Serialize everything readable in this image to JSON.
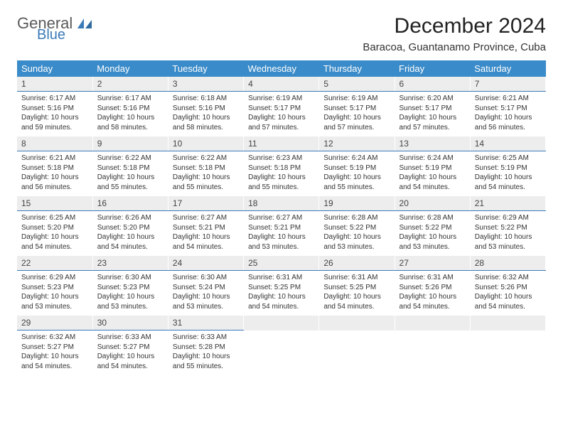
{
  "brand": {
    "word1": "General",
    "word2": "Blue",
    "logo_color": "#3a7ab8"
  },
  "title": "December 2024",
  "location": "Baracoa, Guantanamo Province, Cuba",
  "header_bg": "#3a8bc9",
  "header_fg": "#ffffff",
  "daynum_bg": "#ededed",
  "accent_line": "#3a7ab8",
  "weekdays": [
    "Sunday",
    "Monday",
    "Tuesday",
    "Wednesday",
    "Thursday",
    "Friday",
    "Saturday"
  ],
  "first_weekday_index": 0,
  "days": [
    {
      "n": 1,
      "sunrise": "6:17 AM",
      "sunset": "5:16 PM",
      "daylight": "10 hours and 59 minutes."
    },
    {
      "n": 2,
      "sunrise": "6:17 AM",
      "sunset": "5:16 PM",
      "daylight": "10 hours and 58 minutes."
    },
    {
      "n": 3,
      "sunrise": "6:18 AM",
      "sunset": "5:16 PM",
      "daylight": "10 hours and 58 minutes."
    },
    {
      "n": 4,
      "sunrise": "6:19 AM",
      "sunset": "5:17 PM",
      "daylight": "10 hours and 57 minutes."
    },
    {
      "n": 5,
      "sunrise": "6:19 AM",
      "sunset": "5:17 PM",
      "daylight": "10 hours and 57 minutes."
    },
    {
      "n": 6,
      "sunrise": "6:20 AM",
      "sunset": "5:17 PM",
      "daylight": "10 hours and 57 minutes."
    },
    {
      "n": 7,
      "sunrise": "6:21 AM",
      "sunset": "5:17 PM",
      "daylight": "10 hours and 56 minutes."
    },
    {
      "n": 8,
      "sunrise": "6:21 AM",
      "sunset": "5:18 PM",
      "daylight": "10 hours and 56 minutes."
    },
    {
      "n": 9,
      "sunrise": "6:22 AM",
      "sunset": "5:18 PM",
      "daylight": "10 hours and 55 minutes."
    },
    {
      "n": 10,
      "sunrise": "6:22 AM",
      "sunset": "5:18 PM",
      "daylight": "10 hours and 55 minutes."
    },
    {
      "n": 11,
      "sunrise": "6:23 AM",
      "sunset": "5:18 PM",
      "daylight": "10 hours and 55 minutes."
    },
    {
      "n": 12,
      "sunrise": "6:24 AM",
      "sunset": "5:19 PM",
      "daylight": "10 hours and 55 minutes."
    },
    {
      "n": 13,
      "sunrise": "6:24 AM",
      "sunset": "5:19 PM",
      "daylight": "10 hours and 54 minutes."
    },
    {
      "n": 14,
      "sunrise": "6:25 AM",
      "sunset": "5:19 PM",
      "daylight": "10 hours and 54 minutes."
    },
    {
      "n": 15,
      "sunrise": "6:25 AM",
      "sunset": "5:20 PM",
      "daylight": "10 hours and 54 minutes."
    },
    {
      "n": 16,
      "sunrise": "6:26 AM",
      "sunset": "5:20 PM",
      "daylight": "10 hours and 54 minutes."
    },
    {
      "n": 17,
      "sunrise": "6:27 AM",
      "sunset": "5:21 PM",
      "daylight": "10 hours and 54 minutes."
    },
    {
      "n": 18,
      "sunrise": "6:27 AM",
      "sunset": "5:21 PM",
      "daylight": "10 hours and 53 minutes."
    },
    {
      "n": 19,
      "sunrise": "6:28 AM",
      "sunset": "5:22 PM",
      "daylight": "10 hours and 53 minutes."
    },
    {
      "n": 20,
      "sunrise": "6:28 AM",
      "sunset": "5:22 PM",
      "daylight": "10 hours and 53 minutes."
    },
    {
      "n": 21,
      "sunrise": "6:29 AM",
      "sunset": "5:22 PM",
      "daylight": "10 hours and 53 minutes."
    },
    {
      "n": 22,
      "sunrise": "6:29 AM",
      "sunset": "5:23 PM",
      "daylight": "10 hours and 53 minutes."
    },
    {
      "n": 23,
      "sunrise": "6:30 AM",
      "sunset": "5:23 PM",
      "daylight": "10 hours and 53 minutes."
    },
    {
      "n": 24,
      "sunrise": "6:30 AM",
      "sunset": "5:24 PM",
      "daylight": "10 hours and 53 minutes."
    },
    {
      "n": 25,
      "sunrise": "6:31 AM",
      "sunset": "5:25 PM",
      "daylight": "10 hours and 54 minutes."
    },
    {
      "n": 26,
      "sunrise": "6:31 AM",
      "sunset": "5:25 PM",
      "daylight": "10 hours and 54 minutes."
    },
    {
      "n": 27,
      "sunrise": "6:31 AM",
      "sunset": "5:26 PM",
      "daylight": "10 hours and 54 minutes."
    },
    {
      "n": 28,
      "sunrise": "6:32 AM",
      "sunset": "5:26 PM",
      "daylight": "10 hours and 54 minutes."
    },
    {
      "n": 29,
      "sunrise": "6:32 AM",
      "sunset": "5:27 PM",
      "daylight": "10 hours and 54 minutes."
    },
    {
      "n": 30,
      "sunrise": "6:33 AM",
      "sunset": "5:27 PM",
      "daylight": "10 hours and 54 minutes."
    },
    {
      "n": 31,
      "sunrise": "6:33 AM",
      "sunset": "5:28 PM",
      "daylight": "10 hours and 55 minutes."
    }
  ],
  "labels": {
    "sunrise": "Sunrise:",
    "sunset": "Sunset:",
    "daylight": "Daylight:"
  }
}
